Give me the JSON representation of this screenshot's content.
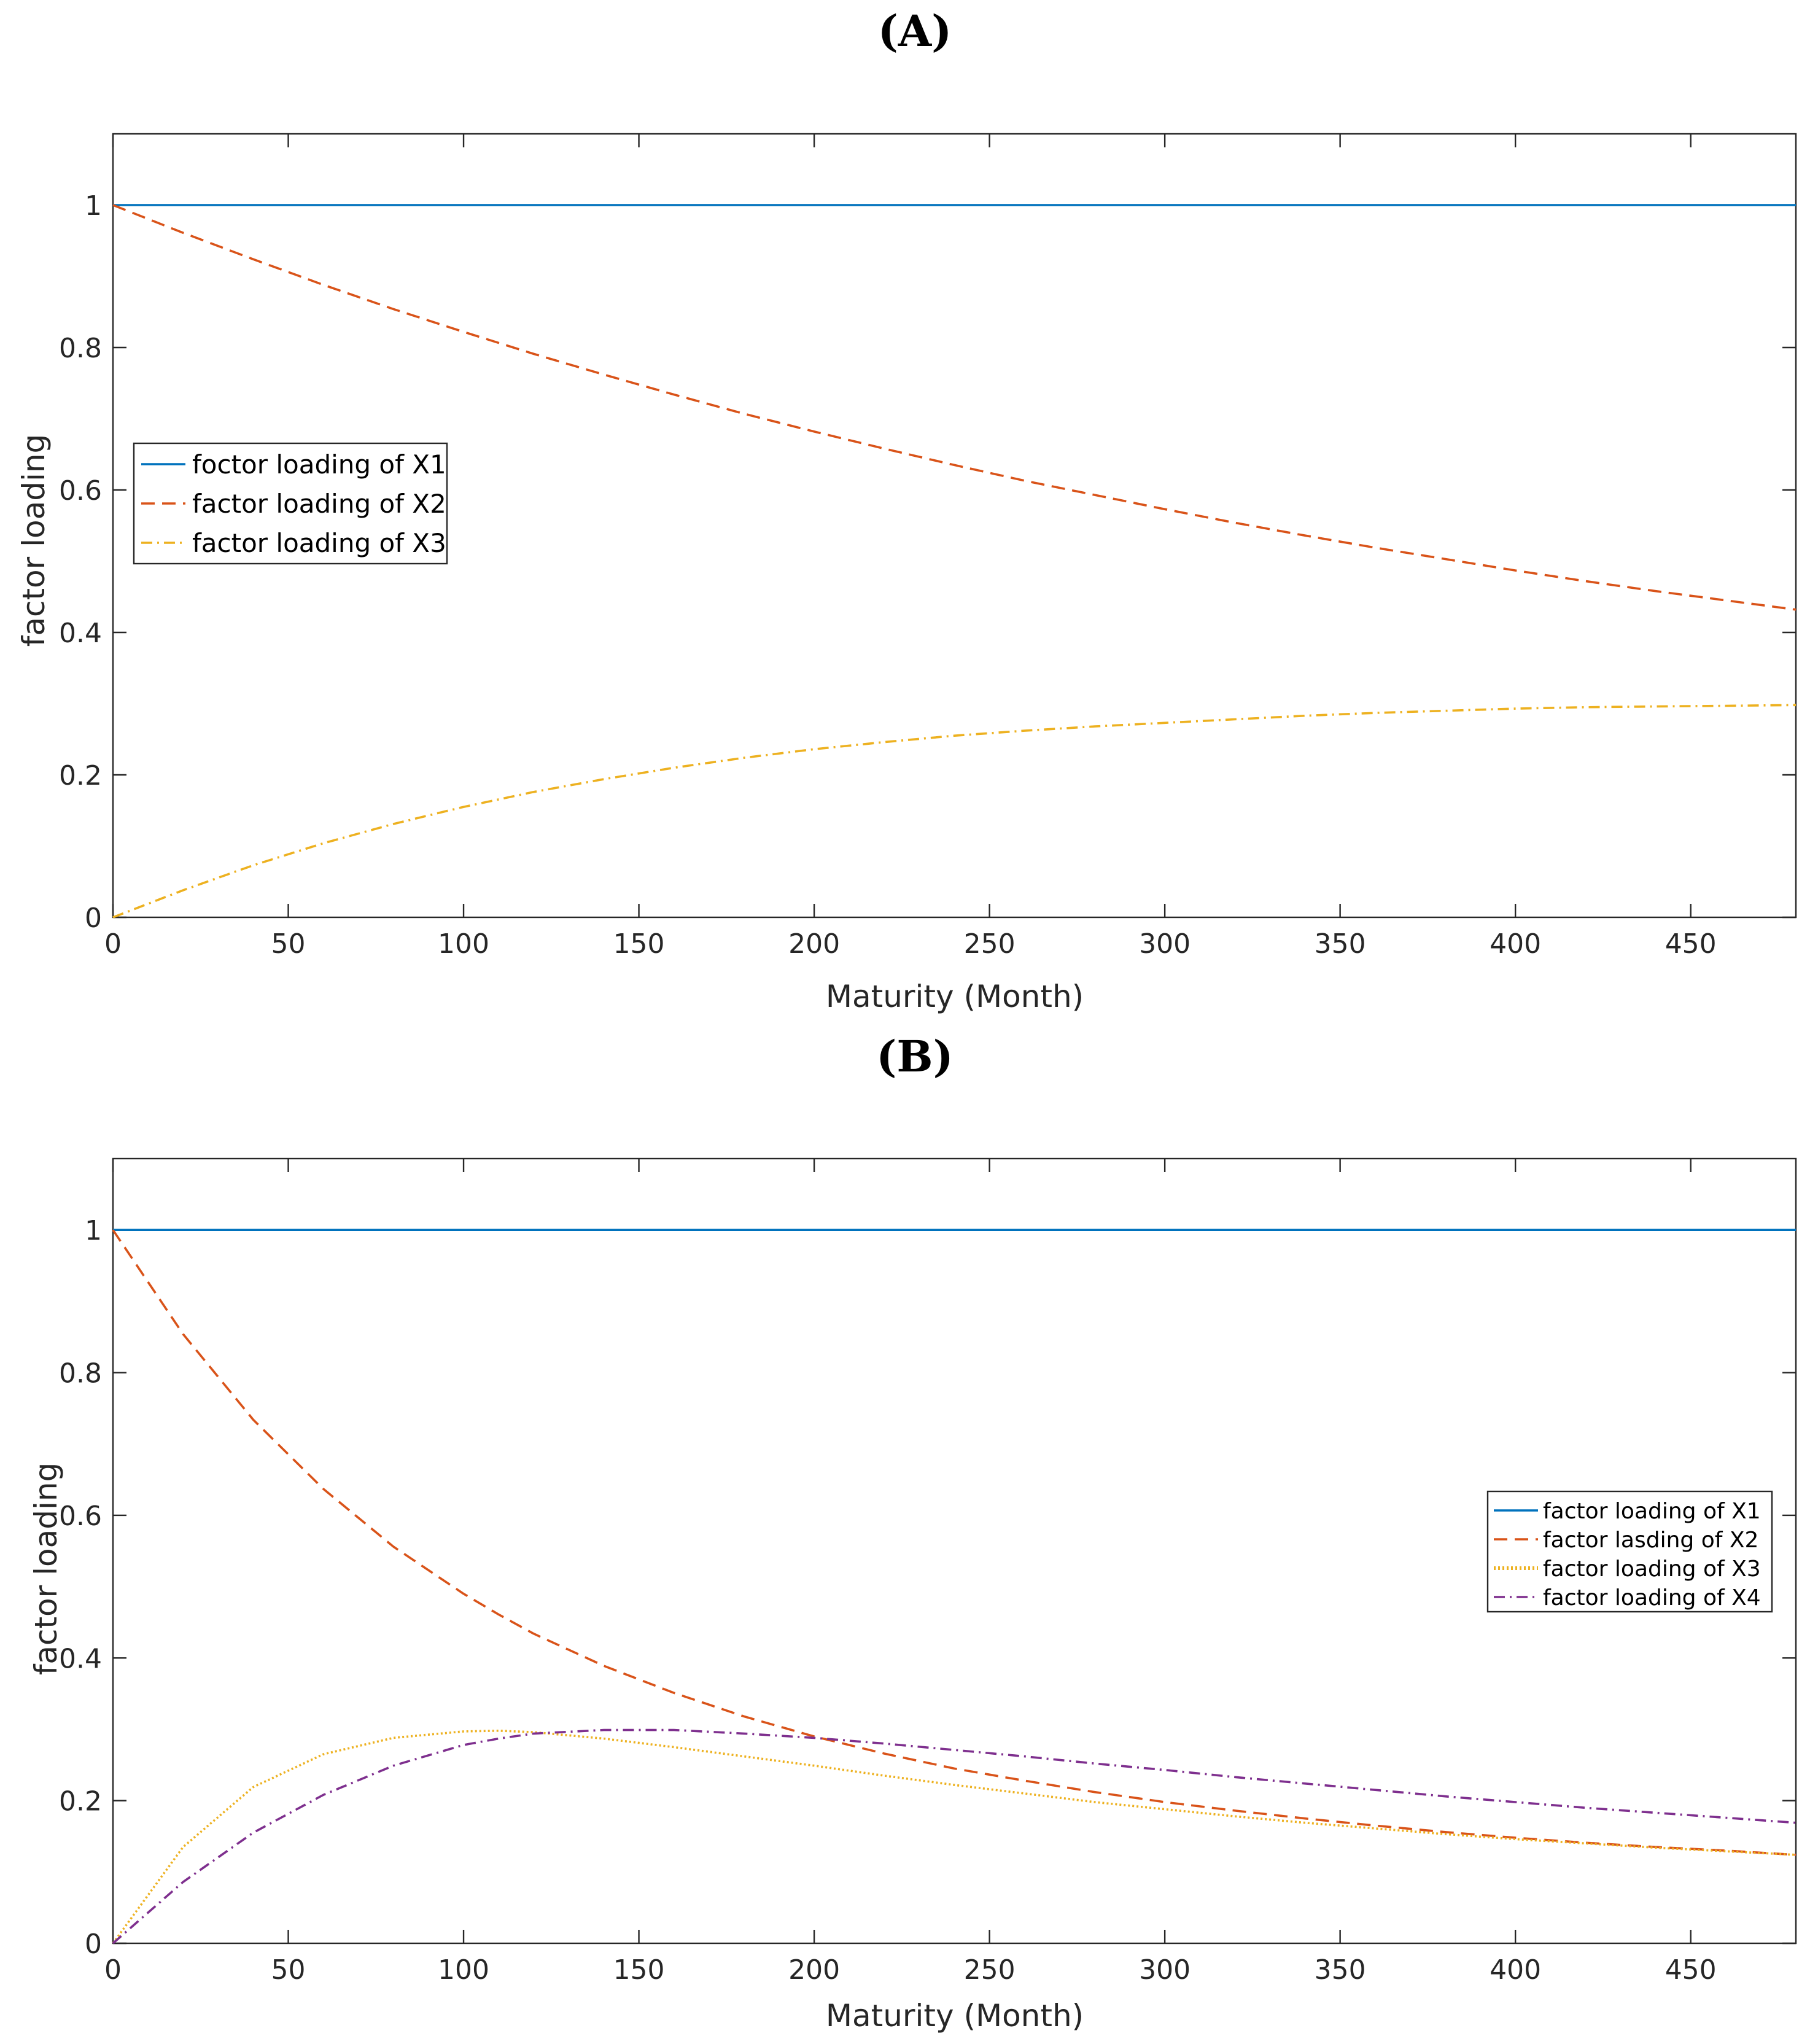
{
  "chart_data": [
    {
      "type": "line",
      "panel_title": "(A)",
      "xlabel": "Maturity (Month)",
      "ylabel": "factor loading",
      "xlim": [
        0,
        480
      ],
      "ylim": [
        0,
        1.1
      ],
      "xticks": [
        0,
        50,
        100,
        150,
        200,
        250,
        300,
        350,
        400,
        450
      ],
      "yticks": [
        0,
        0.2,
        0.4,
        0.6,
        0.8,
        1
      ],
      "ytick_labels": [
        "0",
        "0.2",
        "0.4",
        "0.6",
        "0.8",
        "1"
      ],
      "legend_placement": "center-left",
      "x": [
        0,
        20,
        40,
        60,
        80,
        100,
        120,
        140,
        160,
        180,
        200,
        220,
        240,
        260,
        280,
        300,
        320,
        340,
        360,
        380,
        400,
        420,
        440,
        460,
        480
      ],
      "series": [
        {
          "name": "foctor loading of X1",
          "color": "#0072BD",
          "style": "solid",
          "values": [
            1,
            1,
            1,
            1,
            1,
            1,
            1,
            1,
            1,
            1,
            1,
            1,
            1,
            1,
            1,
            1,
            1,
            1,
            1,
            1,
            1,
            1,
            1,
            1,
            1
          ]
        },
        {
          "name": "factor loading of X2",
          "color": "#D95319",
          "style": "dashed",
          "values": [
            1.0,
            0.961,
            0.924,
            0.888,
            0.854,
            0.822,
            0.791,
            0.762,
            0.734,
            0.707,
            0.682,
            0.658,
            0.635,
            0.613,
            0.593,
            0.573,
            0.554,
            0.536,
            0.519,
            0.503,
            0.487,
            0.472,
            0.458,
            0.445,
            0.432
          ]
        },
        {
          "name": "factor loading of X3",
          "color": "#EDB120",
          "style": "dashdot",
          "values": [
            0.0,
            0.038,
            0.073,
            0.104,
            0.131,
            0.155,
            0.176,
            0.194,
            0.21,
            0.224,
            0.236,
            0.246,
            0.255,
            0.262,
            0.268,
            0.273,
            0.278,
            0.283,
            0.287,
            0.29,
            0.293,
            0.295,
            0.296,
            0.297,
            0.298
          ]
        }
      ]
    },
    {
      "type": "line",
      "panel_title": "(B)",
      "xlabel": "Maturity (Month)",
      "ylabel": "factor loading",
      "xlim": [
        0,
        480
      ],
      "ylim": [
        0,
        1.1
      ],
      "xticks": [
        0,
        50,
        100,
        150,
        200,
        250,
        300,
        350,
        400,
        450
      ],
      "yticks": [
        0,
        0.2,
        0.4,
        0.6,
        0.8,
        1
      ],
      "ytick_labels": [
        "0",
        "0.2",
        "0.4",
        "0.6",
        "0.8",
        "1"
      ],
      "legend_placement": "right",
      "x": [
        0,
        20,
        40,
        60,
        80,
        100,
        110,
        120,
        140,
        160,
        180,
        200,
        220,
        240,
        260,
        280,
        300,
        320,
        340,
        360,
        380,
        400,
        420,
        440,
        460,
        480
      ],
      "series": [
        {
          "name": "factor loading of X1",
          "color": "#0072BD",
          "style": "solid",
          "values": [
            1,
            1,
            1,
            1,
            1,
            1,
            1,
            1,
            1,
            1,
            1,
            1,
            1,
            1,
            1,
            1,
            1,
            1,
            1,
            1,
            1,
            1,
            1,
            1,
            1,
            1
          ]
        },
        {
          "name": "factor lasding of X2",
          "color": "#D95319",
          "style": "dashed",
          "values": [
            1.0,
            0.854,
            0.734,
            0.637,
            0.556,
            0.49,
            0.461,
            0.434,
            0.389,
            0.351,
            0.318,
            0.29,
            0.266,
            0.245,
            0.228,
            0.212,
            0.198,
            0.186,
            0.175,
            0.165,
            0.156,
            0.148,
            0.141,
            0.135,
            0.13,
            0.124
          ]
        },
        {
          "name": "factor loading of X3",
          "color": "#EDB120",
          "style": "dotted",
          "values": [
            0.0,
            0.135,
            0.219,
            0.265,
            0.288,
            0.297,
            0.298,
            0.296,
            0.287,
            0.275,
            0.262,
            0.249,
            0.235,
            0.222,
            0.21,
            0.198,
            0.188,
            0.178,
            0.169,
            0.161,
            0.153,
            0.146,
            0.14,
            0.134,
            0.129,
            0.124
          ]
        },
        {
          "name": "factor loading of X4",
          "color": "#7E2F8E",
          "style": "dashdot",
          "values": [
            0.0,
            0.086,
            0.155,
            0.208,
            0.249,
            0.278,
            0.287,
            0.294,
            0.299,
            0.299,
            0.294,
            0.288,
            0.28,
            0.271,
            0.262,
            0.252,
            0.243,
            0.233,
            0.224,
            0.215,
            0.206,
            0.198,
            0.19,
            0.183,
            0.176,
            0.169
          ]
        }
      ]
    }
  ]
}
